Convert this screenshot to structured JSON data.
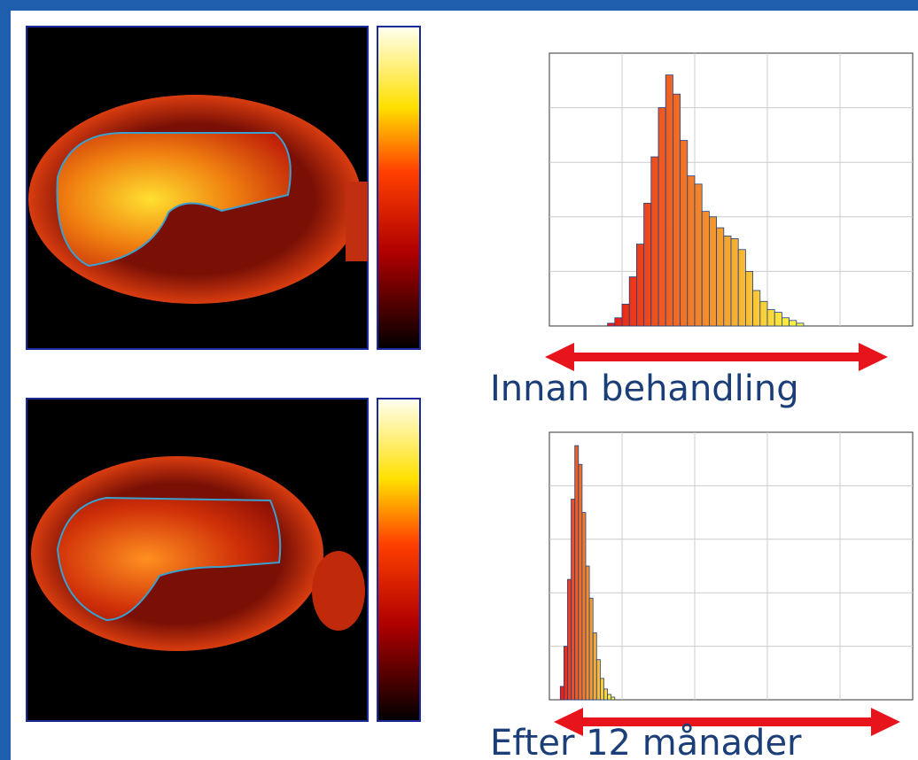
{
  "chart_data": [
    {
      "type": "histogram",
      "title": "Innan behandling",
      "bins": [
        16,
        18,
        20,
        22,
        24,
        26,
        28,
        30,
        32,
        34,
        36,
        38,
        40,
        42,
        44,
        46,
        48,
        50,
        52,
        54,
        56,
        58,
        60,
        62,
        64,
        66,
        68,
        70
      ],
      "values": [
        1,
        3,
        8,
        18,
        30,
        45,
        62,
        80,
        92,
        85,
        68,
        55,
        52,
        42,
        40,
        36,
        33,
        32,
        28,
        20,
        13,
        9,
        6,
        5,
        3,
        2,
        1
      ],
      "xlim": [
        0,
        100
      ],
      "ylim": [
        0,
        100
      ],
      "grid": true,
      "colors": [
        "#e81a14",
        "#ffff40"
      ],
      "edge_color": "#1d3f86"
    },
    {
      "type": "histogram",
      "title": "Efter 12 månader",
      "bins": [
        3,
        4,
        5,
        6,
        7,
        8,
        9,
        10,
        11,
        12,
        13,
        14,
        15,
        16,
        17,
        18
      ],
      "values": [
        5,
        20,
        45,
        75,
        95,
        88,
        70,
        50,
        38,
        25,
        15,
        8,
        4,
        2,
        1
      ],
      "xlim": [
        0,
        100
      ],
      "ylim": [
        0,
        100
      ],
      "grid": true,
      "colors": [
        "#e81a14",
        "#ffff40"
      ],
      "edge_color": "#1d3f86"
    }
  ]
}
